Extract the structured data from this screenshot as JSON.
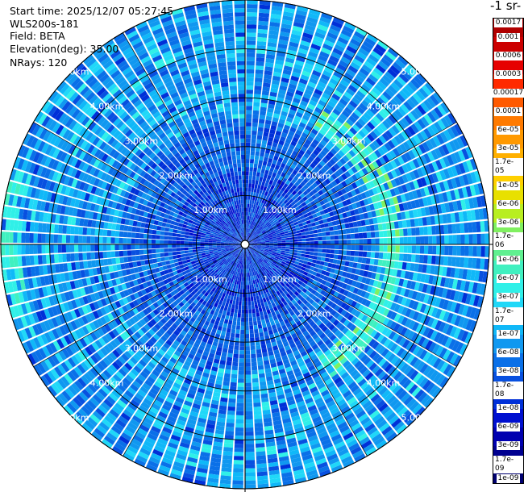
{
  "header": {
    "start_time": "Start time: 2025/12/07 05:27:45",
    "instrument": "WLS200s-181",
    "field": "Field: BETA",
    "elevation": "Elevation(deg): 35.00",
    "nrays": "NRays: 120"
  },
  "colorbar": {
    "unit": "-1 sr-",
    "colors": [
      "#b00000",
      "#cc0000",
      "#e60000",
      "#ff2a00",
      "#ff5a00",
      "#ff7a00",
      "#ff9900",
      "#ffb000",
      "#ffd000",
      "#e8e000",
      "#b8ee20",
      "#80f060",
      "#60f090",
      "#40f0c0",
      "#30f0e8",
      "#20d8f8",
      "#10b8f8",
      "#1098f0",
      "#0a70e8",
      "#0850e0",
      "#0030d8",
      "#0010d0",
      "#0000b0",
      "#000090",
      "#000070"
    ],
    "labels": [
      "0.0017",
      "0.001",
      "0.0006",
      "0.0003",
      "0.00017",
      "0.0001",
      "6e-05",
      "3e-05",
      "1.7e-05",
      "1e-05",
      "6e-06",
      "3e-06",
      "1.7e-06",
      "1e-06",
      "6e-07",
      "3e-07",
      "1.7e-07",
      "1e-07",
      "6e-08",
      "3e-08",
      "1.7e-08",
      "1e-08",
      "6e-09",
      "3e-09",
      "1.7e-09",
      "1e-09"
    ]
  },
  "chart_data": {
    "type": "heatmap",
    "projection": "polar-ppi",
    "rays": 120,
    "range_rings_km": [
      1,
      2,
      3,
      4,
      5
    ],
    "range_labels": [
      "1.00km",
      "2.00km",
      "3.00km",
      "4.00km",
      "5.00km"
    ],
    "max_range_km": 5.0,
    "colormap_range": [
      1e-09,
      0.0017
    ],
    "log_scale": true,
    "dominant_values": [
      "1e-08",
      "3e-08",
      "1e-07"
    ],
    "enhanced_ring_km": 3.0,
    "enhanced_ring_value": "3e-07",
    "grid": true
  }
}
